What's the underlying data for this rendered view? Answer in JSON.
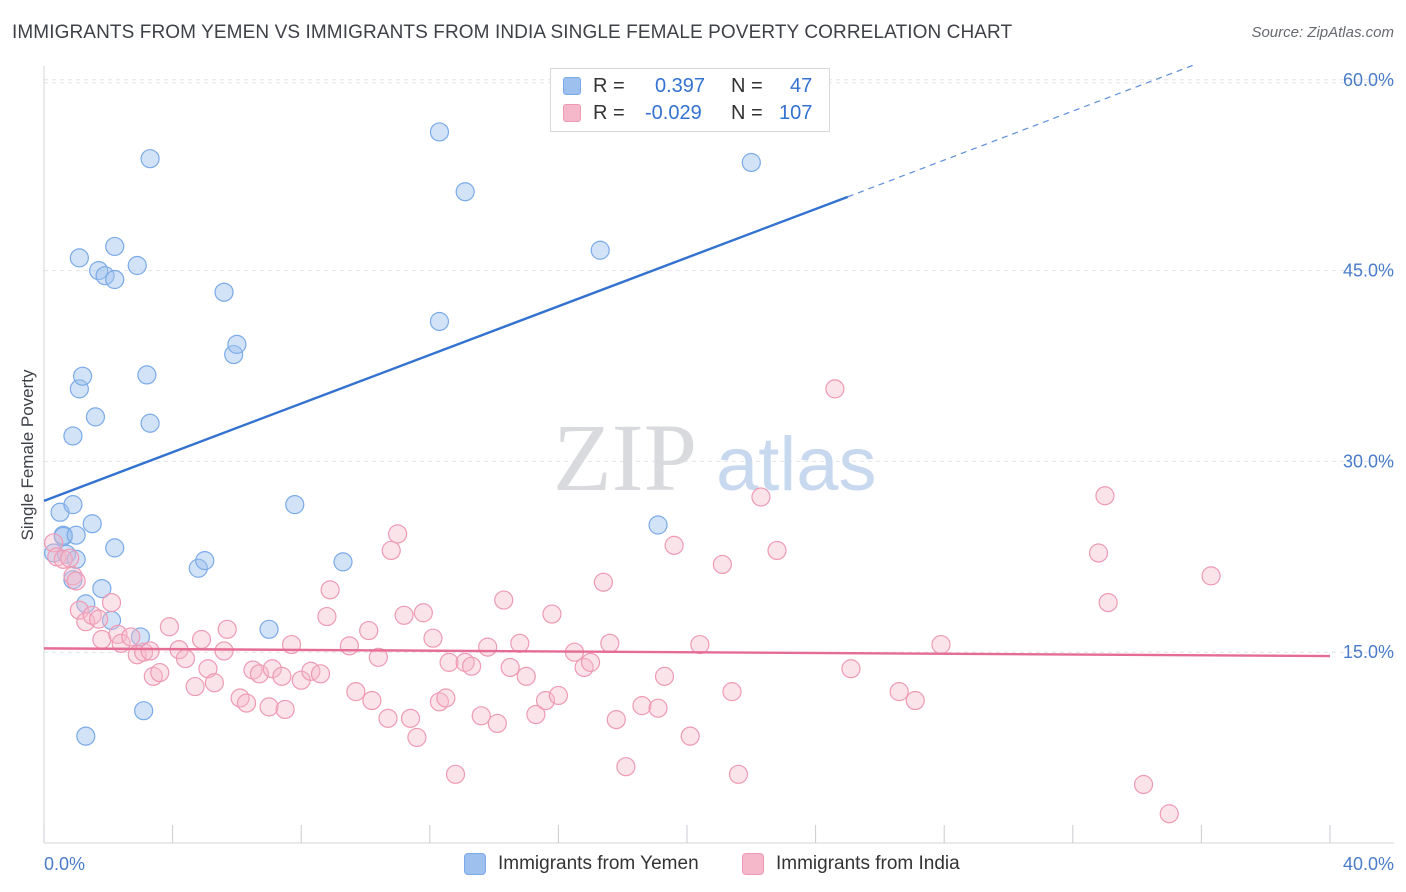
{
  "chart_data": {
    "type": "scatter",
    "title": "IMMIGRANTS FROM YEMEN VS IMMIGRANTS FROM INDIA SINGLE FEMALE POVERTY CORRELATION CHART",
    "source": "Source: ZipAtlas.com",
    "xlabel": "",
    "ylabel": "Single Female Poverty",
    "xlim": [
      0,
      40
    ],
    "ylim": [
      0,
      60
    ],
    "x_tick_labels": [
      "0.0%",
      "40.0%"
    ],
    "y_ticks": [
      {
        "value": 15,
        "label": "15.0%"
      },
      {
        "value": 30,
        "label": "30.0%"
      },
      {
        "value": 45,
        "label": "45.0%"
      },
      {
        "value": 60,
        "label": "60.0%"
      }
    ],
    "watermark": {
      "part1": "ZIP",
      "part2": "atlas"
    },
    "legend": [
      {
        "swatch_color": "#9dc0ee",
        "r_label": "R =",
        "r_value": "0.397",
        "n_label": "N =",
        "n_value": "47"
      },
      {
        "swatch_color": "#f5b8cb",
        "r_label": "R =",
        "r_value": "-0.029",
        "n_label": "N =",
        "n_value": "107"
      }
    ],
    "series": [
      {
        "name": "Immigrants from Yemen",
        "color": "#7aaae8",
        "fill": "rgba(157,192,238,0.45)",
        "line_color": "#3472d0",
        "trend": {
          "x0": 0,
          "y0": 26.9,
          "x1": 25,
          "y1": 50.8,
          "x_dash_end": 35.8,
          "y_dash_end": 61.2
        },
        "points": [
          [
            0.3,
            22.8
          ],
          [
            0.5,
            26.0
          ],
          [
            0.6,
            24.2
          ],
          [
            0.6,
            24.1
          ],
          [
            0.7,
            22.7
          ],
          [
            0.9,
            20.7
          ],
          [
            0.9,
            32.0
          ],
          [
            0.9,
            26.6
          ],
          [
            1.0,
            22.3
          ],
          [
            1.0,
            24.2
          ],
          [
            1.1,
            35.7
          ],
          [
            1.1,
            46.0
          ],
          [
            1.2,
            36.7
          ],
          [
            1.3,
            8.4
          ],
          [
            1.3,
            18.8
          ],
          [
            1.5,
            25.1
          ],
          [
            1.6,
            33.5
          ],
          [
            1.7,
            45.0
          ],
          [
            1.8,
            20.0
          ],
          [
            1.9,
            44.6
          ],
          [
            2.1,
            17.5
          ],
          [
            2.2,
            44.3
          ],
          [
            2.2,
            46.9
          ],
          [
            2.2,
            23.2
          ],
          [
            2.9,
            45.4
          ],
          [
            3.0,
            16.2
          ],
          [
            3.1,
            10.4
          ],
          [
            3.2,
            36.8
          ],
          [
            3.3,
            53.8
          ],
          [
            3.3,
            33.0
          ],
          [
            4.8,
            21.6
          ],
          [
            5.0,
            22.2
          ],
          [
            5.6,
            43.3
          ],
          [
            5.9,
            38.4
          ],
          [
            6.0,
            39.2
          ],
          [
            7.0,
            16.8
          ],
          [
            7.8,
            26.6
          ],
          [
            9.3,
            22.1
          ],
          [
            12.3,
            55.9
          ],
          [
            12.3,
            41.0
          ],
          [
            13.1,
            51.2
          ],
          [
            17.3,
            46.6
          ],
          [
            19.1,
            25.0
          ],
          [
            22.0,
            53.5
          ]
        ]
      },
      {
        "name": "Immigrants from India",
        "color": "#ee9ab5",
        "fill": "rgba(245,184,203,0.4)",
        "line_color": "#e56c95",
        "trend": {
          "x0": 0,
          "y0": 15.3,
          "x1": 40,
          "y1": 14.7
        },
        "points": [
          [
            0.3,
            23.6
          ],
          [
            0.4,
            22.5
          ],
          [
            0.6,
            22.3
          ],
          [
            0.8,
            22.4
          ],
          [
            0.9,
            21.0
          ],
          [
            1.0,
            20.6
          ],
          [
            1.1,
            18.3
          ],
          [
            1.3,
            17.4
          ],
          [
            1.5,
            17.9
          ],
          [
            1.7,
            17.6
          ],
          [
            1.8,
            16.0
          ],
          [
            2.1,
            18.9
          ],
          [
            2.3,
            16.4
          ],
          [
            2.4,
            15.7
          ],
          [
            2.7,
            16.2
          ],
          [
            2.9,
            14.8
          ],
          [
            3.1,
            15.0
          ],
          [
            3.3,
            15.1
          ],
          [
            3.4,
            13.1
          ],
          [
            3.6,
            13.4
          ],
          [
            3.9,
            17.0
          ],
          [
            4.2,
            15.2
          ],
          [
            4.4,
            14.5
          ],
          [
            4.7,
            12.3
          ],
          [
            4.9,
            16.0
          ],
          [
            5.1,
            13.7
          ],
          [
            5.3,
            12.6
          ],
          [
            5.6,
            15.1
          ],
          [
            5.7,
            16.8
          ],
          [
            6.1,
            11.4
          ],
          [
            6.3,
            11.0
          ],
          [
            6.5,
            13.6
          ],
          [
            6.7,
            13.3
          ],
          [
            7.0,
            10.7
          ],
          [
            7.1,
            13.7
          ],
          [
            7.4,
            13.1
          ],
          [
            7.5,
            10.5
          ],
          [
            7.7,
            15.6
          ],
          [
            8.0,
            12.8
          ],
          [
            8.3,
            13.5
          ],
          [
            8.6,
            13.3
          ],
          [
            8.8,
            17.8
          ],
          [
            8.9,
            19.9
          ],
          [
            9.5,
            15.5
          ],
          [
            9.7,
            11.9
          ],
          [
            10.1,
            16.7
          ],
          [
            10.2,
            11.2
          ],
          [
            10.4,
            14.6
          ],
          [
            10.7,
            9.8
          ],
          [
            10.8,
            23.0
          ],
          [
            11.0,
            24.3
          ],
          [
            11.2,
            17.9
          ],
          [
            11.4,
            9.8
          ],
          [
            11.6,
            8.3
          ],
          [
            11.8,
            18.1
          ],
          [
            12.1,
            16.1
          ],
          [
            12.3,
            11.1
          ],
          [
            12.5,
            11.4
          ],
          [
            12.6,
            14.2
          ],
          [
            12.8,
            5.4
          ],
          [
            13.1,
            14.2
          ],
          [
            13.3,
            13.9
          ],
          [
            13.6,
            10.0
          ],
          [
            13.8,
            15.4
          ],
          [
            14.1,
            9.4
          ],
          [
            14.3,
            19.1
          ],
          [
            14.5,
            13.8
          ],
          [
            14.8,
            15.7
          ],
          [
            15.0,
            13.1
          ],
          [
            15.3,
            10.1
          ],
          [
            15.6,
            11.2
          ],
          [
            15.8,
            18.0
          ],
          [
            16.0,
            11.6
          ],
          [
            16.5,
            15.0
          ],
          [
            16.8,
            13.8
          ],
          [
            17.0,
            14.2
          ],
          [
            17.4,
            20.5
          ],
          [
            17.6,
            15.7
          ],
          [
            17.8,
            9.7
          ],
          [
            18.1,
            6.0
          ],
          [
            18.6,
            10.8
          ],
          [
            19.1,
            10.6
          ],
          [
            19.3,
            13.1
          ],
          [
            19.6,
            23.4
          ],
          [
            20.1,
            8.4
          ],
          [
            20.4,
            15.6
          ],
          [
            21.1,
            21.9
          ],
          [
            21.4,
            11.9
          ],
          [
            21.6,
            5.4
          ],
          [
            22.3,
            27.2
          ],
          [
            22.8,
            23.0
          ],
          [
            24.6,
            35.7
          ],
          [
            25.1,
            13.7
          ],
          [
            26.6,
            11.9
          ],
          [
            27.1,
            11.2
          ],
          [
            27.9,
            15.6
          ],
          [
            32.8,
            22.8
          ],
          [
            33.0,
            27.3
          ],
          [
            33.1,
            18.9
          ],
          [
            34.2,
            4.6
          ],
          [
            35.0,
            2.3
          ],
          [
            36.3,
            21.0
          ]
        ]
      }
    ]
  }
}
